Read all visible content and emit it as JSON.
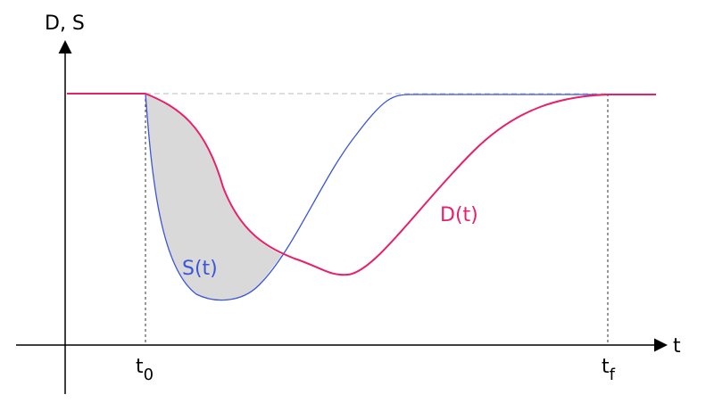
{
  "axes": {
    "y_label": "D, S",
    "x_label": "t"
  },
  "markers": [
    {
      "label": "t",
      "subscript": "0"
    },
    {
      "label": "t",
      "subscript": "f"
    }
  ],
  "curves": [
    {
      "label": "D(t)"
    },
    {
      "label": "S(t)"
    }
  ]
}
